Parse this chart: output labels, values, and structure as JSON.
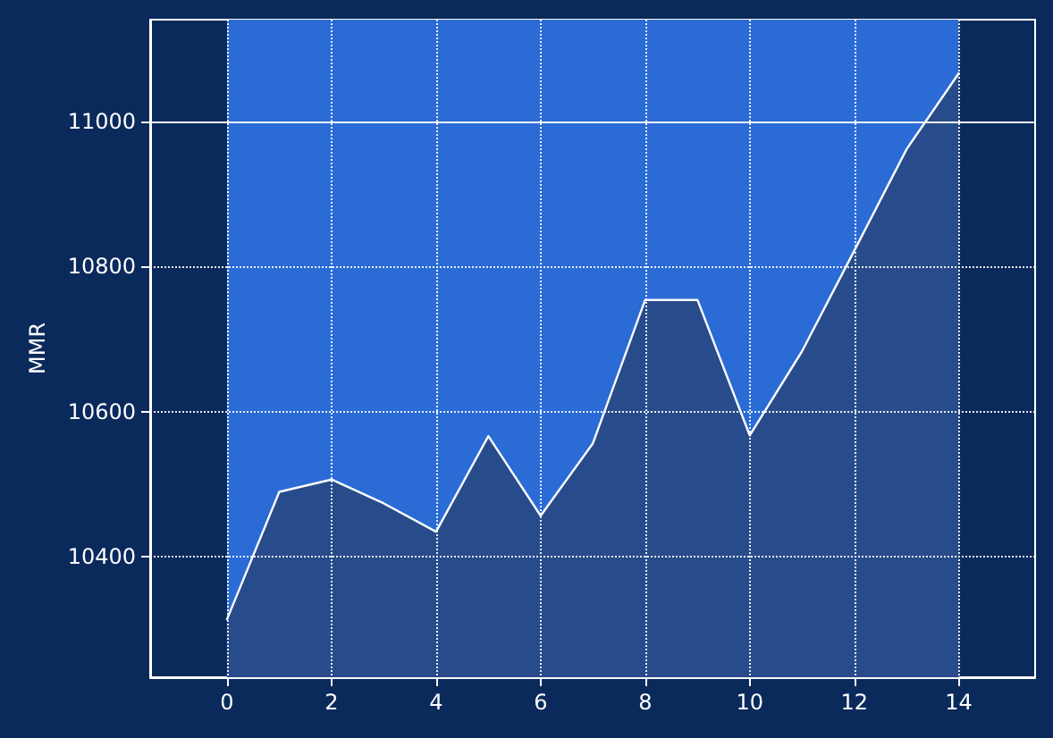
{
  "chart_data": {
    "type": "area",
    "ylabel": "MMR",
    "x": [
      0,
      1,
      2,
      3,
      4,
      5,
      6,
      7,
      8,
      9,
      10,
      11,
      12,
      13,
      14
    ],
    "series": [
      {
        "color": "#ffffff",
        "values": [
          10313,
          10489,
          10506,
          10473,
          10434,
          10566,
          10456,
          10556,
          10754,
          10754,
          10567,
          10683,
          10822,
          10962,
          11067
        ]
      }
    ],
    "xlim": [
      -1.47,
      15.46
    ],
    "ylim": [
      10233,
      11141
    ],
    "xticks": [
      0,
      2,
      4,
      6,
      8,
      10,
      12,
      14
    ],
    "yticks": [
      10400,
      10600,
      10800,
      11000
    ],
    "ref_lines": [
      {
        "axis": "y",
        "value": 11000,
        "color": "#ffffff",
        "line_style": "solid"
      }
    ],
    "bands": [
      {
        "axis": "x",
        "from": 0,
        "to": 14,
        "color": "#2a6bd6"
      }
    ],
    "grid": true,
    "line_style": "solid",
    "marker": "none"
  }
}
